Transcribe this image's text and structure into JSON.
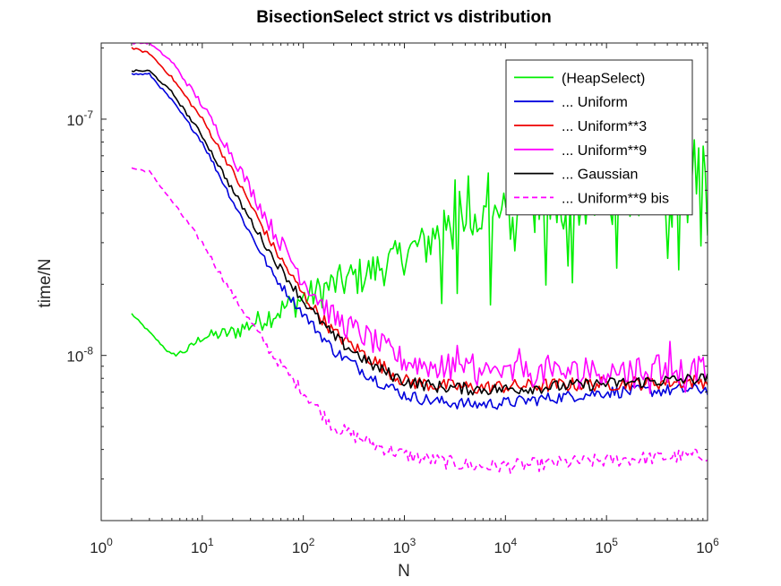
{
  "chart_data": {
    "type": "line",
    "title": "BisectionSelect strict vs distribution",
    "xlabel": "N",
    "ylabel": "time/N",
    "xscale": "log",
    "yscale": "log",
    "xlim": [
      1,
      1000000
    ],
    "ylim": [
      2e-09,
      2.1e-07
    ],
    "x_ticks": [
      {
        "base": "10",
        "exp": "0",
        "value": 1
      },
      {
        "base": "10",
        "exp": "1",
        "value": 10
      },
      {
        "base": "10",
        "exp": "2",
        "value": 100
      },
      {
        "base": "10",
        "exp": "3",
        "value": 1000
      },
      {
        "base": "10",
        "exp": "4",
        "value": 10000
      },
      {
        "base": "10",
        "exp": "5",
        "value": 100000
      },
      {
        "base": "10",
        "exp": "6",
        "value": 1000000
      }
    ],
    "y_ticks": [
      {
        "base": "10",
        "exp": "-8",
        "value": 1e-08
      },
      {
        "base": "10",
        "exp": "-7",
        "value": 1e-07
      }
    ],
    "grid": false,
    "legend_position": "top-right",
    "series": [
      {
        "name": "(HeapSelect)",
        "color": "#00ee00",
        "dash": "solid",
        "noise": 0.18,
        "spikes": 0.45,
        "x": [
          2,
          5,
          7,
          10,
          20,
          50,
          100,
          200,
          500,
          1000,
          2000,
          5000,
          10000,
          20000,
          50000,
          100000,
          200000,
          500000,
          1000000
        ],
        "y": [
          1.5e-08,
          1e-08,
          1.05e-08,
          1.2e-08,
          1.25e-08,
          1.5e-08,
          1.75e-08,
          2e-08,
          2.3e-08,
          2.7e-08,
          3.2e-08,
          3.8e-08,
          4e-08,
          4.2e-08,
          4.4e-08,
          4.6e-08,
          4.8e-08,
          5.5e-08,
          6.5e-08
        ]
      },
      {
        "name": "... Uniform",
        "color": "#0000dd",
        "dash": "solid",
        "noise": 0.05,
        "spikes": 0,
        "x": [
          2,
          3,
          5,
          10,
          20,
          50,
          100,
          200,
          500,
          1000,
          2000,
          5000,
          10000,
          100000,
          1000000
        ],
        "y": [
          1.55e-07,
          1.55e-07,
          1.2e-07,
          8e-08,
          4.5e-08,
          2.2e-08,
          1.5e-08,
          1.05e-08,
          8e-09,
          6.8e-09,
          6.4e-09,
          6.2e-09,
          6.3e-09,
          7e-09,
          7.2e-09
        ]
      },
      {
        "name": "... Uniform**3",
        "color": "#ee0000",
        "dash": "solid",
        "noise": 0.06,
        "spikes": 0,
        "x": [
          2,
          3,
          5,
          10,
          20,
          50,
          100,
          200,
          500,
          1000,
          2000,
          5000,
          10000,
          100000,
          1000000
        ],
        "y": [
          2e-07,
          1.9e-07,
          1.5e-07,
          1e-07,
          6e-08,
          2.9e-08,
          1.8e-08,
          1.25e-08,
          9.5e-09,
          7.8e-09,
          7.5e-09,
          7.3e-09,
          7.4e-09,
          7.6e-09,
          7.8e-09
        ]
      },
      {
        "name": "... Uniform**9",
        "color": "#ff00ff",
        "dash": "solid",
        "noise": 0.12,
        "spikes": 0.12,
        "x": [
          2,
          3,
          5,
          10,
          20,
          50,
          100,
          200,
          500,
          1000,
          2000,
          5000,
          10000,
          100000,
          1000000
        ],
        "y": [
          2.1e-07,
          2.1e-07,
          1.75e-07,
          1.15e-07,
          7e-08,
          3.4e-08,
          2.1e-08,
          1.45e-08,
          1.15e-08,
          9.5e-09,
          9e-09,
          8.5e-09,
          8.4e-09,
          8.6e-09,
          8.8e-09
        ]
      },
      {
        "name": "... Gaussian",
        "color": "#000000",
        "dash": "solid",
        "noise": 0.05,
        "spikes": 0,
        "x": [
          2,
          3,
          5,
          10,
          20,
          50,
          100,
          200,
          500,
          1000,
          2000,
          5000,
          10000,
          100000,
          1000000
        ],
        "y": [
          1.6e-07,
          1.6e-07,
          1.3e-07,
          8.5e-08,
          5e-08,
          2.6e-08,
          1.7e-08,
          1.2e-08,
          9e-09,
          7.8e-09,
          7.4e-09,
          7.2e-09,
          7.2e-09,
          7.6e-09,
          8e-09
        ]
      },
      {
        "name": "... Uniform**9 bis",
        "color": "#ff00ff",
        "dash": "dashed",
        "noise": 0.06,
        "spikes": 0,
        "x": [
          2,
          3,
          5,
          10,
          20,
          50,
          100,
          200,
          500,
          1000,
          2000,
          5000,
          10000,
          100000,
          1000000
        ],
        "y": [
          6.2e-08,
          6e-08,
          4.5e-08,
          3e-08,
          1.8e-08,
          1e-08,
          7e-09,
          5e-09,
          4.2e-09,
          3.8e-09,
          3.6e-09,
          3.4e-09,
          3.4e-09,
          3.6e-09,
          3.8e-09
        ]
      }
    ]
  }
}
